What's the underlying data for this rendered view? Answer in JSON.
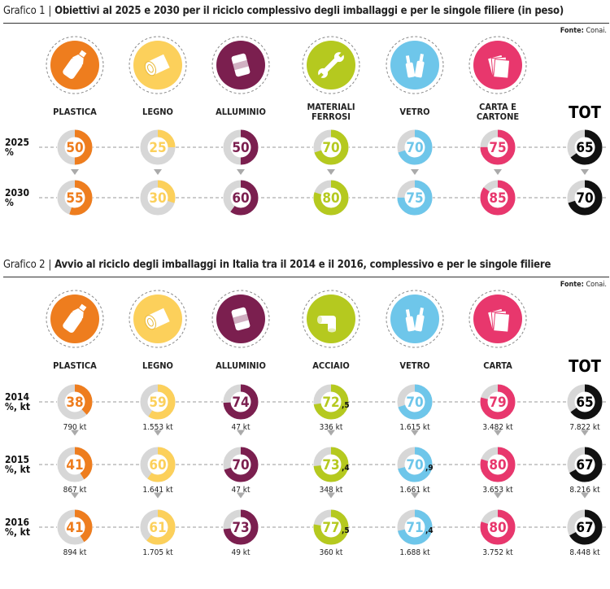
{
  "charts": [
    {
      "label": "Grafico 1",
      "title": "Obiettivi al 2025 e 2030 per il riciclo complessivo degli imballaggi e per le singole filiere (in peso)",
      "source_label": "Fonte:",
      "source_value": "Conai.",
      "categories": [
        {
          "label": "PLASTICA",
          "icon": "plastic-bottle-icon",
          "color": "#ee7d1e"
        },
        {
          "label": "LEGNO",
          "icon": "wood-log-icon",
          "color": "#fcd05b"
        },
        {
          "label": "ALLUMINIO",
          "icon": "aluminium-can-icon",
          "color": "#7b1f4f"
        },
        {
          "label": "MATERIALI\nFERROSI",
          "icon": "wrench-icon",
          "color": "#b5c91f"
        },
        {
          "label": "VETRO",
          "icon": "glass-bottles-icon",
          "color": "#6ec6ea"
        },
        {
          "label": "CARTA E\nCARTONE",
          "icon": "paper-icon",
          "color": "#e8376d"
        }
      ],
      "total_label": "TOT",
      "rows": [
        {
          "label": "2025\n%",
          "values": [
            "50",
            "25",
            "50",
            "70",
            "70",
            "75"
          ],
          "total": "65"
        },
        {
          "label": "2030\n%",
          "values": [
            "55",
            "30",
            "60",
            "80",
            "75",
            "85"
          ],
          "total": "70"
        }
      ]
    },
    {
      "label": "Grafico 2",
      "title": "Avvio al riciclo degli imballaggi in Italia tra il 2014 e il 2016, complessivo e per le singole filiere",
      "source_label": "Fonte:",
      "source_value": "Conai.",
      "categories": [
        {
          "label": "PLASTICA",
          "icon": "plastic-bottle-icon",
          "color": "#ee7d1e"
        },
        {
          "label": "LEGNO",
          "icon": "wood-log-icon",
          "color": "#fcd05b"
        },
        {
          "label": "ALLUMINIO",
          "icon": "aluminium-can-icon",
          "color": "#7b1f4f"
        },
        {
          "label": "ACCIAIO",
          "icon": "steel-pipe-icon",
          "color": "#b5c91f"
        },
        {
          "label": "VETRO",
          "icon": "glass-bottles-icon",
          "color": "#6ec6ea"
        },
        {
          "label": "CARTA",
          "icon": "paper-icon",
          "color": "#e8376d"
        }
      ],
      "total_label": "TOT",
      "rows": [
        {
          "label": "2014\n%, kt",
          "values": [
            "38",
            "59",
            "74",
            "72,5",
            "70",
            "79"
          ],
          "total": "65",
          "kt": [
            "790 kt",
            "1.553 kt",
            "47 kt",
            "336 kt",
            "1.615 kt",
            "3.482 kt"
          ],
          "total_kt": "7.822 kt"
        },
        {
          "label": "2015\n%, kt",
          "values": [
            "41",
            "60",
            "70",
            "73,4",
            "70,9",
            "80"
          ],
          "total": "67",
          "kt": [
            "867 kt",
            "1.641 kt",
            "47 kt",
            "348 kt",
            "1.661 kt",
            "3.653 kt"
          ],
          "total_kt": "8.216 kt"
        },
        {
          "label": "2016\n%, kt",
          "values": [
            "41",
            "61",
            "73",
            "77,5",
            "71,4",
            "80"
          ],
          "total": "67",
          "kt": [
            "894 kt",
            "1.705 kt",
            "49 kt",
            "360 kt",
            "1.688 kt",
            "3.752 kt"
          ],
          "total_kt": "8.448 kt"
        }
      ]
    }
  ],
  "colors": {
    "track": "#d7d7d7",
    "total": "#111111",
    "arrow": "#aaaaaa",
    "dash": "#9a9a9a"
  }
}
